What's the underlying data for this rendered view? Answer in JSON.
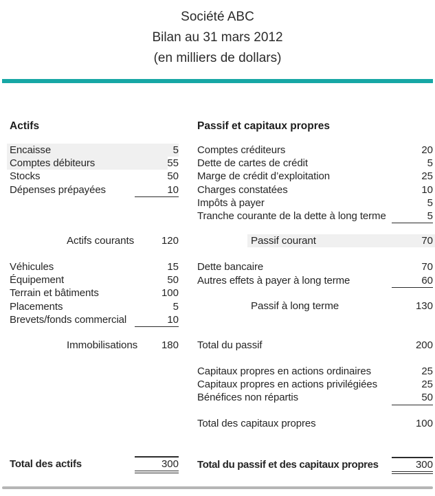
{
  "header": {
    "company": "Société ABC",
    "title": "Bilan au 31 mars 2012",
    "subtitle": "(en milliers de dollars)"
  },
  "colors": {
    "accent_teal": "#17a7a5",
    "bottom_rule": "#b5b5b5",
    "highlight": "#f0f0f0",
    "ink": "#212121"
  },
  "assets": {
    "heading": "Actifs",
    "rows": [
      {
        "label": "Encaisse",
        "value": "5"
      },
      {
        "label": "Comptes débiteurs",
        "value": "55"
      },
      {
        "label": "Stocks",
        "value": "50"
      },
      {
        "label": "Dépenses prépayées",
        "value": "10"
      },
      {
        "label": "Actifs courants",
        "value": "120"
      },
      {
        "label": "Véhicules",
        "value": "15"
      },
      {
        "label": "Équipement",
        "value": "50"
      },
      {
        "label": "Terrain et bâtiments",
        "value": "100"
      },
      {
        "label": "Placements",
        "value": "5"
      },
      {
        "label": "Brevets/fonds commercial",
        "value": "10"
      },
      {
        "label": "Immobilisations",
        "value": "180"
      },
      {
        "label": "Total des actifs",
        "value": "300"
      }
    ]
  },
  "liabilities": {
    "heading": "Passif et capitaux propres",
    "rows": [
      {
        "label": "Comptes créditeurs",
        "value": "20"
      },
      {
        "label": "Dette de cartes de crédit",
        "value": "5"
      },
      {
        "label": "Marge de crédit d’exploitation",
        "value": "25"
      },
      {
        "label": "Charges constatées",
        "value": "10"
      },
      {
        "label": "Impôts à payer",
        "value": "5"
      },
      {
        "label": "Tranche courante de la dette à long terme",
        "value": "5"
      },
      {
        "label": "Passif courant",
        "value": "70"
      },
      {
        "label": "Dette bancaire",
        "value": "70"
      },
      {
        "label": "Autres effets à payer à long terme",
        "value": "60"
      },
      {
        "label": "Passif à long terme",
        "value": "130"
      },
      {
        "label": "Total du passif",
        "value": "200"
      },
      {
        "label": "Capitaux propres en actions ordinaires",
        "value": "25"
      },
      {
        "label": "Capitaux propres en actions privilégiées",
        "value": "25"
      },
      {
        "label": "Bénéfices non répartis",
        "value": "50"
      },
      {
        "label": "Total des capitaux propres",
        "value": "100"
      },
      {
        "label": "Total du passif et des capitaux propres",
        "value": "300"
      }
    ]
  }
}
